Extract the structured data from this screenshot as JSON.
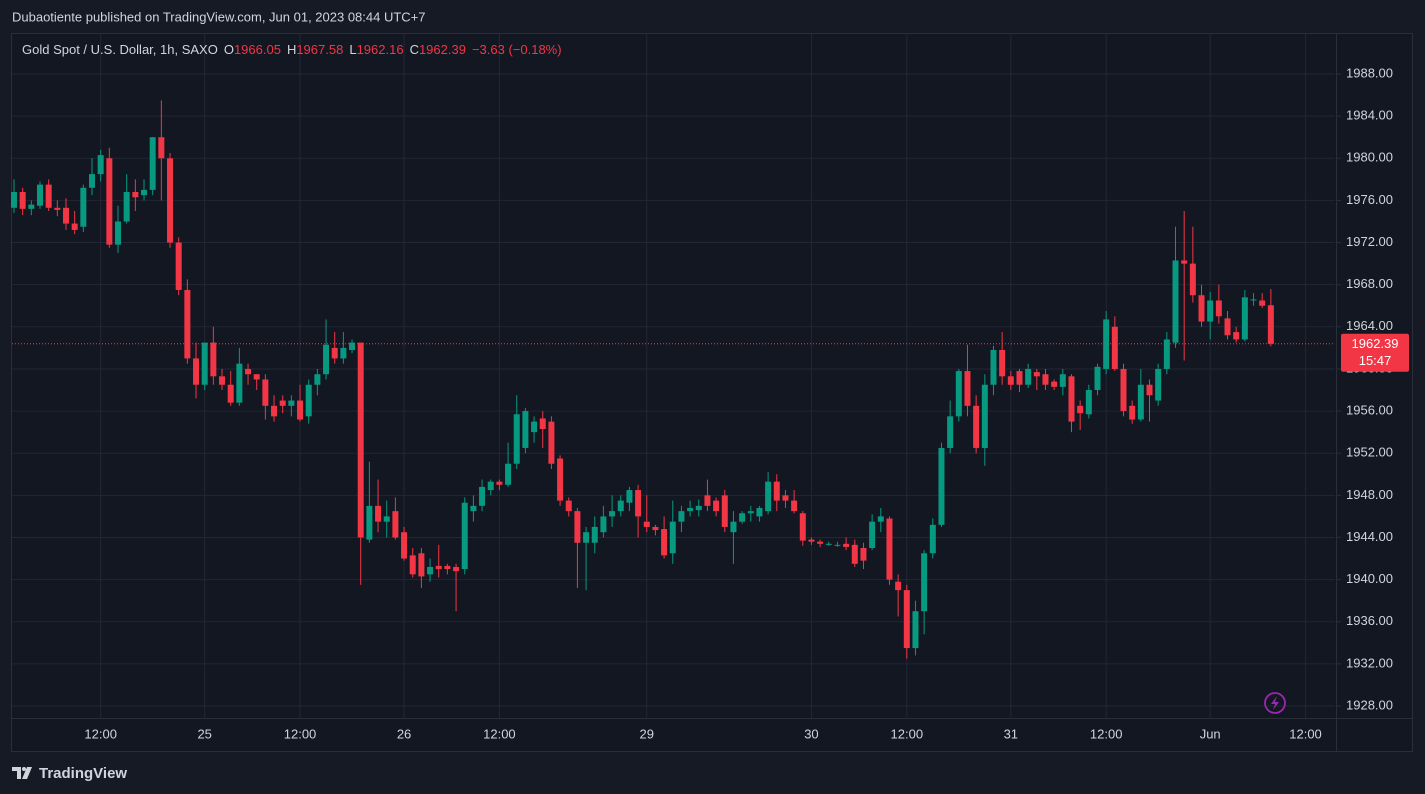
{
  "header": {
    "title": "Dubaotiente published on TradingView.com, Jun 01, 2023 08:44 UTC+7"
  },
  "chart_data": {
    "type": "candlestick",
    "legend": {
      "symbol": "Gold Spot / U.S. Dollar, 1h, SAXO",
      "open_label": "O",
      "high_label": "H",
      "low_label": "L",
      "close_label": "C",
      "change": "−3.63 (−0.18%)"
    },
    "up_color": "#089981",
    "down_color": "#f23645",
    "open": [
      1975.3,
      1976.8,
      1975.2,
      1975.5,
      1977.5,
      1975.3,
      1975.3,
      1973.8,
      1973.5,
      1977.2,
      1978.5,
      1980,
      1971.8,
      1974,
      1976.8,
      1976.5,
      1977,
      1982,
      1980,
      1972,
      1967.5,
      1961,
      1958.5,
      1962.5,
      1959.3,
      1958.5,
      1956.8,
      1960,
      1959.5,
      1959,
      1956.5,
      1957,
      1956.5,
      1957,
      1955.5,
      1958.5,
      1959.5,
      1962,
      1961,
      1961.8,
      1962.5,
      1943.8,
      1947,
      1945.5,
      1946.5,
      1944.5,
      1942.3,
      1942.5,
      1940.5,
      1941.3,
      1941.3,
      1941.2,
      1941,
      1946.5,
      1947,
      1948.5,
      1949.3,
      1949,
      1951,
      1952.5,
      1954,
      1955.3,
      1955,
      1951.5,
      1947.5,
      1946.5,
      1943.5,
      1943.5,
      1944.5,
      1946,
      1946.5,
      1947.3,
      1948.5,
      1945.5,
      1945,
      1944.8,
      1942.5,
      1945.5,
      1946.5,
      1946.6,
      1948,
      1947.5,
      1948,
      1944.5,
      1945.5,
      1946.3,
      1946,
      1946.5,
      1949.3,
      1948,
      1947.5,
      1946.3,
      1943.8,
      1943.6,
      1943.4,
      1943.3,
      1943.4,
      1943.3,
      1943,
      1943,
      1945.5,
      1945.8,
      1939.8,
      1939,
      1933.5,
      1937,
      1942.5,
      1945.2,
      1952.5,
      1955.5,
      1959.8,
      1956.5,
      1952.5,
      1958.5,
      1961.8,
      1959.3,
      1959.8,
      1958.5,
      1959.7,
      1959.5,
      1958.8,
      1958.3,
      1959.3,
      1956.5,
      1955.7,
      1958,
      1960,
      1964,
      1960,
      1956.5,
      1955.2,
      1958.5,
      1957,
      1960,
      1962.5,
      1970.3,
      1970,
      1967,
      1964.5,
      1966.5,
      1964.8,
      1963.5,
      1962.8,
      1966.5,
      1966.5,
      1966.05
    ],
    "high": [
      1978,
      1977.2,
      1976,
      1977.8,
      1978,
      1976,
      1976.2,
      1975,
      1977.5,
      1980,
      1980.8,
      1981,
      1975.5,
      1978.5,
      1978,
      1978,
      1982,
      1985.5,
      1980.5,
      1972.5,
      1968.5,
      1962.5,
      1962.5,
      1964,
      1960,
      1959.8,
      1962,
      1960.5,
      1959.5,
      1959.5,
      1957.5,
      1957.5,
      1957.5,
      1958.5,
      1959,
      1960,
      1964.7,
      1963.5,
      1963.5,
      1962.8,
      1962.5,
      1951.2,
      1949.5,
      1947.5,
      1947.8,
      1945,
      1943,
      1943,
      1942,
      1943.3,
      1941.5,
      1941.5,
      1947.8,
      1948,
      1949.5,
      1949.5,
      1949.5,
      1953,
      1957.5,
      1956.3,
      1955.5,
      1956,
      1955.5,
      1951.8,
      1947.8,
      1946.8,
      1945,
      1946,
      1947,
      1948,
      1948,
      1948.8,
      1949,
      1948,
      1945.2,
      1946,
      1947.5,
      1947,
      1947.5,
      1947.6,
      1949.5,
      1947.8,
      1948.5,
      1946.5,
      1946.5,
      1947,
      1947,
      1950.2,
      1950,
      1948.5,
      1948.5,
      1946.5,
      1944,
      1943.8,
      1943.6,
      1943.6,
      1944,
      1943.8,
      1943.5,
      1946.2,
      1946.8,
      1946,
      1940.5,
      1939.5,
      1938,
      1942.8,
      1945.8,
      1953,
      1957,
      1960,
      1962.3,
      1957.5,
      1959.5,
      1962.2,
      1963.5,
      1959.8,
      1960,
      1960.5,
      1960,
      1960,
      1959,
      1960,
      1959.5,
      1957,
      1958.5,
      1960.5,
      1965.5,
      1965,
      1960.5,
      1957,
      1960,
      1959,
      1960.5,
      1963.5,
      1973.5,
      1975,
      1973.5,
      1968,
      1967.3,
      1968,
      1965.5,
      1964,
      1967.5,
      1967.2,
      1967.2,
      1967.58
    ],
    "low": [
      1974.8,
      1974.6,
      1974.6,
      1975.2,
      1975,
      1974.5,
      1973.2,
      1972.8,
      1973,
      1976.5,
      1977.8,
      1971.5,
      1971,
      1973.8,
      1975,
      1976,
      1976.5,
      1976,
      1971.5,
      1967,
      1960.5,
      1957.2,
      1958,
      1958.5,
      1958,
      1956.5,
      1956.5,
      1958.5,
      1958,
      1955.2,
      1955,
      1955.8,
      1955.5,
      1955,
      1954.8,
      1957.5,
      1959,
      1960.5,
      1960.5,
      1961.5,
      1939.5,
      1943.5,
      1944.5,
      1944,
      1943.8,
      1941.8,
      1940.2,
      1939.2,
      1939.8,
      1940.2,
      1940.5,
      1937,
      1940.5,
      1945.5,
      1946.5,
      1948,
      1948.5,
      1948.8,
      1950.5,
      1952,
      1953,
      1952.5,
      1950.5,
      1947,
      1946,
      1939.2,
      1939,
      1942.5,
      1944,
      1945,
      1946,
      1946.5,
      1944,
      1944.5,
      1944.2,
      1942,
      1941.5,
      1944.5,
      1946,
      1946,
      1946.5,
      1946,
      1944.5,
      1941.5,
      1945.3,
      1945.5,
      1945.5,
      1946.2,
      1946.5,
      1946.8,
      1946.3,
      1943.2,
      1943.3,
      1943.1,
      1943.2,
      1943.1,
      1942.8,
      1941.2,
      1941,
      1942.8,
      1944.5,
      1939.5,
      1936.5,
      1932.5,
      1932.8,
      1934.8,
      1942,
      1945,
      1952,
      1955,
      1955.5,
      1952,
      1950.8,
      1957.5,
      1958.5,
      1958,
      1957.8,
      1958.2,
      1958,
      1958,
      1958,
      1957.5,
      1954,
      1954.2,
      1955.3,
      1957.5,
      1959.5,
      1959.8,
      1955.5,
      1954.8,
      1955,
      1955,
      1956.5,
      1959.5,
      1962,
      1960.8,
      1966.3,
      1964,
      1962.8,
      1964.3,
      1962.8,
      1962.5,
      1962.6,
      1966,
      1965.8,
      1962.16
    ],
    "close": [
      1976.8,
      1975.2,
      1975.6,
      1977.5,
      1975.3,
      1975.1,
      1973.8,
      1973.2,
      1977.2,
      1978.5,
      1980.3,
      1971.8,
      1974,
      1976.8,
      1976.3,
      1977,
      1982,
      1980,
      1972,
      1967.5,
      1961,
      1958.5,
      1962.5,
      1959.3,
      1958.5,
      1956.8,
      1960.5,
      1959.5,
      1959,
      1956.5,
      1955.5,
      1956.5,
      1957,
      1955.2,
      1958.5,
      1959.5,
      1962.3,
      1961,
      1962,
      1962.5,
      1944,
      1947,
      1945.5,
      1946,
      1944,
      1942,
      1940.5,
      1940.3,
      1941.2,
      1941,
      1941,
      1940.8,
      1947.3,
      1947,
      1948.8,
      1949.3,
      1949,
      1951,
      1955.7,
      1956,
      1955,
      1954.3,
      1951,
      1947.5,
      1946.5,
      1943.5,
      1944.5,
      1945,
      1946,
      1946.5,
      1947.5,
      1948.5,
      1946,
      1945,
      1944.7,
      1942.3,
      1945.5,
      1946.5,
      1946.8,
      1947,
      1947,
      1946.5,
      1945,
      1945.5,
      1946.3,
      1946.5,
      1946.8,
      1949.3,
      1947.5,
      1947.5,
      1946.5,
      1943.7,
      1943.6,
      1943.4,
      1943.4,
      1943.3,
      1943.1,
      1941.5,
      1941.8,
      1945.5,
      1946,
      1940,
      1939,
      1933.5,
      1937,
      1942.5,
      1945.2,
      1952.5,
      1955.5,
      1959.8,
      1956.5,
      1952.5,
      1958.5,
      1961.8,
      1959.3,
      1958.5,
      1958.5,
      1960,
      1959.3,
      1958.5,
      1958.3,
      1959.5,
      1955,
      1955.8,
      1958,
      1960.2,
      1964.7,
      1960,
      1956,
      1955.2,
      1958.5,
      1957.5,
      1960,
      1962.8,
      1970.3,
      1970,
      1967,
      1964.5,
      1966.5,
      1965,
      1963.2,
      1962.8,
      1966.8,
      1966.6,
      1966,
      1962.39
    ],
    "countdown": "15:47",
    "xlim": [
      -0.23,
      152.4
    ],
    "xticks": [
      {
        "value": 10,
        "label": "12:00"
      },
      {
        "value": 22,
        "label": "25"
      },
      {
        "value": 33,
        "label": "12:00"
      },
      {
        "value": 45,
        "label": "26"
      },
      {
        "value": 56,
        "label": "12:00"
      },
      {
        "value": 73,
        "label": "29"
      },
      {
        "value": 92,
        "label": "30"
      },
      {
        "value": 103,
        "label": "12:00"
      },
      {
        "value": 115,
        "label": "31"
      },
      {
        "value": 126,
        "label": "12:00"
      },
      {
        "value": 138,
        "label": "Jun"
      },
      {
        "value": 149,
        "label": "12:00"
      }
    ],
    "ylim": [
      1926.86,
      1991.8
    ],
    "yticks": [
      {
        "value": 1928,
        "label": "1928.00"
      },
      {
        "value": 1932,
        "label": "1932.00"
      },
      {
        "value": 1936,
        "label": "1936.00"
      },
      {
        "value": 1940,
        "label": "1940.00"
      },
      {
        "value": 1944,
        "label": "1944.00"
      },
      {
        "value": 1948,
        "label": "1948.00"
      },
      {
        "value": 1952,
        "label": "1952.00"
      },
      {
        "value": 1956,
        "label": "1956.00"
      },
      {
        "value": 1960,
        "label": "1960.00"
      },
      {
        "value": 1964,
        "label": "1964.00"
      },
      {
        "value": 1968,
        "label": "1968.00"
      },
      {
        "value": 1972,
        "label": "1972.00"
      },
      {
        "value": 1976,
        "label": "1976.00"
      },
      {
        "value": 1980,
        "label": "1980.00"
      },
      {
        "value": 1984,
        "label": "1984.00"
      },
      {
        "value": 1988,
        "label": "1988.00"
      }
    ],
    "grid": true
  },
  "footer": {
    "brand": "TradingView"
  }
}
